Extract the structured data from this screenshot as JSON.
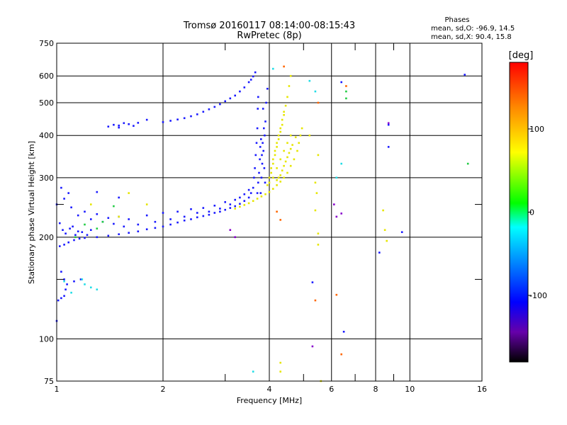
{
  "chart_data": {
    "type": "scatter",
    "title": "Tromsø 20160117 08:14:00-08:15:43",
    "subtitle": "RwPretec (8p)",
    "xlabel": "Frequency [MHz]",
    "ylabel": "Stationary phase Virtual Height [km]",
    "x_scale": "log",
    "y_scale": "log",
    "xlim": [
      1,
      16
    ],
    "ylim": [
      75,
      750
    ],
    "grid": true,
    "x_ticks": [
      {
        "v": 1,
        "label": "1"
      },
      {
        "v": 2,
        "label": "2"
      },
      {
        "v": 4,
        "label": "4"
      },
      {
        "v": 6,
        "label": "6"
      },
      {
        "v": 8,
        "label": "8"
      },
      {
        "v": 10,
        "label": "10"
      },
      {
        "v": 16,
        "label": "16"
      }
    ],
    "x_minor_ticks": [
      3,
      5,
      7,
      9
    ],
    "y_ticks": [
      {
        "v": 75,
        "label": "75"
      },
      {
        "v": 100,
        "label": "100"
      },
      {
        "v": 200,
        "label": "200"
      },
      {
        "v": 300,
        "label": "300"
      },
      {
        "v": 400,
        "label": "400"
      },
      {
        "v": 500,
        "label": "500"
      },
      {
        "v": 600,
        "label": "600"
      },
      {
        "v": 750,
        "label": "750"
      }
    ],
    "y_minor_ticks": [
      150,
      250
    ],
    "phases": {
      "title": "Phases",
      "o_line": "mean, sd,O: -96.9, 14.5",
      "x_line": "mean, sd,X:  90.4, 15.8"
    },
    "colorbar": {
      "label": "[deg]",
      "min": -180,
      "max": 180,
      "ticks": [
        {
          "v": 100,
          "label": "100"
        },
        {
          "v": 0,
          "label": "0"
        },
        {
          "v": -100,
          "label": "-100"
        }
      ]
    },
    "series": [
      {
        "color": "#1a1aff",
        "points": [
          [
            1.0,
            113
          ],
          [
            1.01,
            130
          ],
          [
            1.03,
            132
          ],
          [
            1.05,
            134
          ],
          [
            1.06,
            140
          ],
          [
            1.05,
            150
          ],
          [
            1.03,
            158
          ],
          [
            1.07,
            145
          ],
          [
            1.12,
            148
          ],
          [
            1.17,
            150
          ],
          [
            1.02,
            188
          ],
          [
            1.05,
            190
          ],
          [
            1.08,
            193
          ],
          [
            1.12,
            196
          ],
          [
            1.16,
            198
          ],
          [
            1.2,
            199
          ],
          [
            1.3,
            200
          ],
          [
            1.4,
            202
          ],
          [
            1.5,
            204
          ],
          [
            1.6,
            206
          ],
          [
            1.7,
            208
          ],
          [
            1.8,
            211
          ],
          [
            1.9,
            213
          ],
          [
            2.0,
            215
          ],
          [
            2.1,
            218
          ],
          [
            2.2,
            221
          ],
          [
            2.3,
            224
          ],
          [
            2.4,
            226
          ],
          [
            2.5,
            229
          ],
          [
            2.6,
            231
          ],
          [
            2.7,
            233
          ],
          [
            2.8,
            236
          ],
          [
            2.9,
            238
          ],
          [
            3.0,
            241
          ],
          [
            3.1,
            244
          ],
          [
            3.2,
            247
          ],
          [
            3.3,
            251
          ],
          [
            3.4,
            256
          ],
          [
            3.5,
            262
          ],
          [
            3.55,
            270
          ],
          [
            3.6,
            280
          ],
          [
            3.62,
            300
          ],
          [
            3.64,
            320
          ],
          [
            3.66,
            350
          ],
          [
            3.68,
            380
          ],
          [
            3.7,
            420
          ],
          [
            3.71,
            480
          ],
          [
            3.72,
            520
          ],
          [
            1.0,
            250
          ],
          [
            1.05,
            260
          ],
          [
            1.1,
            245
          ],
          [
            1.15,
            232
          ],
          [
            1.2,
            238
          ],
          [
            1.25,
            226
          ],
          [
            1.3,
            234
          ],
          [
            1.35,
            222
          ],
          [
            1.4,
            228
          ],
          [
            1.45,
            219
          ],
          [
            1.5,
            230
          ],
          [
            1.55,
            215
          ],
          [
            1.6,
            226
          ],
          [
            1.7,
            218
          ],
          [
            1.8,
            232
          ],
          [
            1.9,
            222
          ],
          [
            2.0,
            236
          ],
          [
            2.1,
            226
          ],
          [
            2.2,
            238
          ],
          [
            2.3,
            230
          ],
          [
            2.4,
            242
          ],
          [
            2.5,
            236
          ],
          [
            2.6,
            244
          ],
          [
            2.7,
            238
          ],
          [
            2.8,
            248
          ],
          [
            2.9,
            243
          ],
          [
            3.0,
            254
          ],
          [
            3.1,
            250
          ],
          [
            3.2,
            258
          ],
          [
            3.3,
            262
          ],
          [
            3.4,
            268
          ],
          [
            3.5,
            276
          ],
          [
            1.03,
            280
          ],
          [
            1.08,
            270
          ],
          [
            1.3,
            272
          ],
          [
            1.5,
            262
          ],
          [
            1.4,
            425
          ],
          [
            1.5,
            428
          ],
          [
            1.6,
            432
          ],
          [
            1.7,
            436
          ],
          [
            1.5,
            422
          ],
          [
            1.45,
            430
          ],
          [
            1.65,
            427
          ],
          [
            1.55,
            435
          ],
          [
            2.0,
            438
          ],
          [
            2.1,
            442
          ],
          [
            2.2,
            446
          ],
          [
            2.4,
            456
          ],
          [
            2.6,
            470
          ],
          [
            2.8,
            486
          ],
          [
            3.0,
            505
          ],
          [
            3.2,
            525
          ],
          [
            3.4,
            555
          ],
          [
            3.5,
            575
          ],
          [
            3.6,
            598
          ],
          [
            3.65,
            615
          ],
          [
            2.3,
            450
          ],
          [
            2.5,
            462
          ],
          [
            2.7,
            478
          ],
          [
            2.9,
            495
          ],
          [
            3.1,
            515
          ],
          [
            3.3,
            540
          ],
          [
            3.55,
            585
          ],
          [
            1.8,
            445
          ],
          [
            3.8,
            300
          ],
          [
            3.82,
            330
          ],
          [
            3.85,
            360
          ],
          [
            3.88,
            400
          ],
          [
            3.9,
            440
          ],
          [
            3.92,
            500
          ],
          [
            3.95,
            550
          ],
          [
            3.78,
            270
          ],
          [
            3.84,
            480
          ],
          [
            3.86,
            420
          ],
          [
            3.7,
            270
          ],
          [
            3.72,
            290
          ],
          [
            3.74,
            310
          ],
          [
            3.76,
            340
          ],
          [
            3.77,
            370
          ],
          [
            3.79,
            390
          ],
          [
            3.81,
            350
          ],
          [
            3.83,
            380
          ],
          [
            3.87,
            320
          ],
          [
            3.89,
            290
          ],
          [
            1.02,
            220
          ],
          [
            1.04,
            210
          ],
          [
            1.06,
            205
          ],
          [
            1.09,
            212
          ],
          [
            1.11,
            215
          ],
          [
            1.13,
            203
          ],
          [
            1.15,
            208
          ],
          [
            1.18,
            207
          ],
          [
            1.22,
            203
          ],
          [
            1.25,
            210
          ],
          [
            8.7,
            430
          ],
          [
            8.7,
            370
          ],
          [
            8.2,
            180
          ],
          [
            9.5,
            207
          ],
          [
            6.5,
            105
          ],
          [
            5.3,
            147
          ],
          [
            14.3,
            605
          ],
          [
            6.4,
            575
          ]
        ]
      },
      {
        "color": "#e6e600",
        "points": [
          [
            3.2,
            243
          ],
          [
            3.3,
            246
          ],
          [
            3.4,
            249
          ],
          [
            3.5,
            252
          ],
          [
            3.6,
            256
          ],
          [
            3.7,
            260
          ],
          [
            3.8,
            264
          ],
          [
            3.9,
            268
          ],
          [
            4.0,
            272
          ],
          [
            4.1,
            278
          ],
          [
            4.2,
            285
          ],
          [
            4.3,
            292
          ],
          [
            4.4,
            300
          ],
          [
            4.5,
            310
          ],
          [
            4.6,
            325
          ],
          [
            4.7,
            340
          ],
          [
            4.8,
            360
          ],
          [
            4.85,
            380
          ],
          [
            4.9,
            400
          ],
          [
            4.95,
            420
          ],
          [
            4.0,
            290
          ],
          [
            4.05,
            310
          ],
          [
            4.1,
            330
          ],
          [
            4.15,
            350
          ],
          [
            4.2,
            370
          ],
          [
            4.25,
            390
          ],
          [
            4.3,
            410
          ],
          [
            4.35,
            430
          ],
          [
            4.4,
            460
          ],
          [
            4.45,
            490
          ],
          [
            4.5,
            520
          ],
          [
            4.55,
            560
          ],
          [
            4.6,
            600
          ],
          [
            4.2,
            320
          ],
          [
            4.3,
            340
          ],
          [
            4.4,
            360
          ],
          [
            4.5,
            380
          ],
          [
            4.6,
            400
          ],
          [
            4.25,
            300
          ],
          [
            4.35,
            315
          ],
          [
            4.45,
            335
          ],
          [
            4.55,
            355
          ],
          [
            4.65,
            375
          ],
          [
            4.75,
            395
          ],
          [
            4.1,
            300
          ],
          [
            4.2,
            295
          ],
          [
            4.3,
            305
          ],
          [
            4.4,
            325
          ],
          [
            4.5,
            345
          ],
          [
            4.6,
            365
          ],
          [
            3.95,
            285
          ],
          [
            4.0,
            300
          ],
          [
            4.05,
            320
          ],
          [
            4.1,
            340
          ],
          [
            4.15,
            360
          ],
          [
            4.2,
            380
          ],
          [
            4.25,
            400
          ],
          [
            4.3,
            420
          ],
          [
            4.35,
            445
          ],
          [
            4.4,
            470
          ],
          [
            5.4,
            290
          ],
          [
            5.45,
            270
          ],
          [
            5.4,
            240
          ],
          [
            5.5,
            205
          ],
          [
            5.5,
            190
          ],
          [
            5.6,
            75
          ],
          [
            4.3,
            80
          ],
          [
            4.3,
            85
          ],
          [
            8.4,
            240
          ],
          [
            8.5,
            210
          ],
          [
            8.6,
            195
          ],
          [
            5.5,
            350
          ],
          [
            5.2,
            400
          ],
          [
            1.8,
            250
          ],
          [
            1.5,
            230
          ],
          [
            1.25,
            250
          ],
          [
            1.6,
            270
          ]
        ]
      },
      {
        "color": "#22dde6",
        "points": [
          [
            1.2,
            145
          ],
          [
            1.3,
            140
          ],
          [
            1.25,
            142
          ],
          [
            1.18,
            150
          ],
          [
            1.05,
            148
          ],
          [
            1.1,
            137
          ],
          [
            3.6,
            80
          ],
          [
            5.4,
            540
          ],
          [
            5.2,
            580
          ],
          [
            6.4,
            330
          ],
          [
            6.2,
            300
          ],
          [
            4.1,
            630
          ]
        ]
      },
      {
        "color": "#22cc44",
        "points": [
          [
            1.13,
            200
          ],
          [
            1.2,
            218
          ],
          [
            1.3,
            212
          ],
          [
            1.35,
            222
          ],
          [
            1.45,
            247
          ],
          [
            6.6,
            515
          ],
          [
            6.6,
            540
          ],
          [
            14.6,
            330
          ]
        ]
      },
      {
        "color": "#ff6600",
        "points": [
          [
            4.2,
            238
          ],
          [
            4.4,
            640
          ],
          [
            5.5,
            500
          ],
          [
            5.4,
            130
          ],
          [
            6.2,
            135
          ],
          [
            6.4,
            90
          ],
          [
            6.6,
            560
          ],
          [
            4.3,
            225
          ]
        ]
      },
      {
        "color": "#8800cc",
        "points": [
          [
            3.1,
            210
          ],
          [
            3.2,
            200
          ],
          [
            6.4,
            235
          ],
          [
            5.3,
            95
          ],
          [
            8.7,
            435
          ],
          [
            6.1,
            250
          ],
          [
            6.2,
            230
          ]
        ]
      }
    ]
  }
}
